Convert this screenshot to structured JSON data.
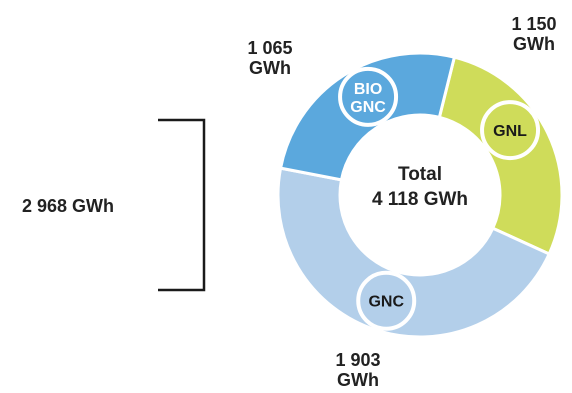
{
  "chart_data": {
    "type": "pie",
    "style": "donut",
    "center_label": {
      "line1": "Total",
      "line2": "4 118 GWh"
    },
    "total_value": 4118,
    "unit": "GWh",
    "slices": [
      {
        "name": "GNL",
        "value": 1150,
        "value_label_line1": "1 150",
        "value_label_line2": "GWh",
        "color": "#cfdc5a",
        "badge_text_color": "#1a1a1a"
      },
      {
        "name": "GNC",
        "value": 1903,
        "value_label_line1": "1 903",
        "value_label_line2": "GWh",
        "color": "#b3cfea",
        "badge_text_color": "#1a1a1a"
      },
      {
        "name_line1": "BIO",
        "name_line2": "GNC",
        "value": 1065,
        "value_label_line1": "1 065",
        "value_label_line2": "GWh",
        "color": "#5ba8dd",
        "badge_text_color": "#ffffff"
      }
    ],
    "bracket": {
      "value": 2968,
      "label": "2 968 GWh"
    }
  }
}
